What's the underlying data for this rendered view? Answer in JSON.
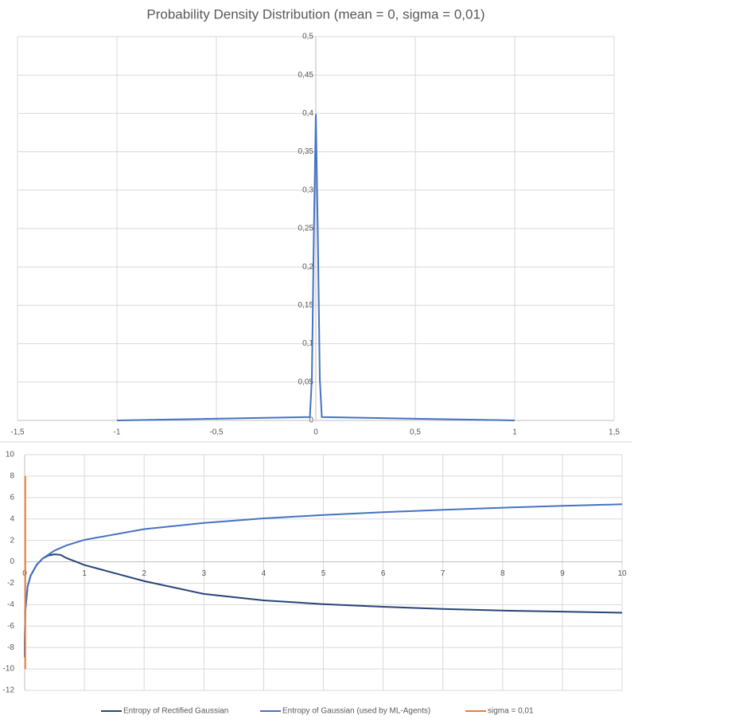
{
  "chart_data": [
    {
      "type": "line",
      "title": "Probability Density Distribution (mean = 0, sigma = 0,01)",
      "x": [
        -1,
        -0.03,
        -0.02,
        -0.01,
        0,
        0.01,
        0.02,
        0.03,
        1
      ],
      "values": [
        0,
        0.0044,
        0.054,
        0.242,
        0.399,
        0.242,
        0.054,
        0.0044,
        0
      ],
      "color": "#4472c4",
      "xlim": [
        -1.5,
        1.5
      ],
      "xticks": [
        {
          "value": -1.5,
          "label": "-1,5"
        },
        -1,
        {
          "value": -0.5,
          "label": "-0,5"
        },
        0,
        {
          "value": 0.5,
          "label": "0,5"
        },
        1,
        {
          "value": 1.5,
          "label": "1,5"
        }
      ],
      "ylim": [
        0,
        0.5
      ],
      "yticks": [
        0,
        {
          "value": 0.05,
          "label": "0,05"
        },
        {
          "value": 0.1,
          "label": "0,1"
        },
        {
          "value": 0.15,
          "label": "0,15"
        },
        {
          "value": 0.2,
          "label": "0,2"
        },
        {
          "value": 0.25,
          "label": "0,25"
        },
        {
          "value": 0.3,
          "label": "0,3"
        },
        {
          "value": 0.35,
          "label": "0,35"
        },
        {
          "value": 0.4,
          "label": "0,4"
        },
        {
          "value": 0.45,
          "label": "0,45"
        },
        {
          "value": 0.5,
          "label": "0,5"
        }
      ],
      "grid": true
    },
    {
      "type": "line",
      "series": [
        {
          "name": "Entropy of Rectified Gaussian",
          "color": "#264478",
          "x": [
            0.0005,
            0.001,
            0.01,
            0.05,
            0.1,
            0.2,
            0.3,
            0.4,
            0.5,
            0.6,
            0.7,
            1,
            1.5,
            2,
            3,
            4,
            5,
            6,
            7,
            8,
            9,
            10
          ],
          "values": [
            -8.9,
            -7.9,
            -4.6,
            -2.28,
            -1.3,
            -0.3,
            0.3,
            0.6,
            0.7,
            0.65,
            0.35,
            -0.3,
            -1.05,
            -1.8,
            -3.0,
            -3.6,
            -3.95,
            -4.2,
            -4.4,
            -4.55,
            -4.65,
            -4.75
          ]
        },
        {
          "name": "Entropy of Gaussian (used by ML-Agents)",
          "color": "#4472c4",
          "x": [
            0.0005,
            0.001,
            0.01,
            0.05,
            0.1,
            0.2,
            0.3,
            0.5,
            0.7,
            1,
            2,
            3,
            4,
            5,
            6,
            7,
            8,
            9,
            10
          ],
          "values": [
            -8.9,
            -7.9,
            -4.6,
            -2.28,
            -1.27,
            -0.27,
            0.31,
            1.05,
            1.53,
            2.05,
            3.05,
            3.63,
            4.05,
            4.37,
            4.63,
            4.85,
            5.05,
            5.22,
            5.37
          ]
        },
        {
          "name": "sigma  = 0,01",
          "color": "#ed7d31",
          "x": [
            0.01,
            0.01
          ],
          "values": [
            -10,
            8
          ]
        }
      ],
      "xlim": [
        0,
        10
      ],
      "xticks": [
        0,
        1,
        2,
        3,
        4,
        5,
        6,
        7,
        8,
        9,
        10
      ],
      "ylim": [
        -12,
        10
      ],
      "yticks": [
        -12,
        -10,
        -8,
        -6,
        -4,
        -2,
        0,
        2,
        4,
        6,
        8,
        10
      ],
      "grid": true,
      "legend": "bottom"
    }
  ]
}
